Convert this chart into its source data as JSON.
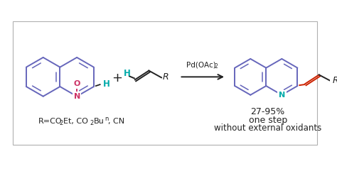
{
  "figure_width": 4.74,
  "figure_height": 2.48,
  "dpi": 100,
  "bg_color": "#ffffff",
  "box_color": "#b0b0b0",
  "ring_color": "#6666bb",
  "cyan_color": "#00aaaa",
  "red_color": "#cc2200",
  "black_color": "#222222",
  "ox_color": "#cc3366",
  "catalyst_text": "Pd(OAc)",
  "catalyst_sub": "2",
  "yield_text": "27-95%",
  "step_text": "one step",
  "oxidant_text": "without external oxidants",
  "plus_sign": "+",
  "h_label": "H",
  "r_label": "R",
  "n_label_left": "N",
  "n_label_right": "N",
  "o_label": "O"
}
